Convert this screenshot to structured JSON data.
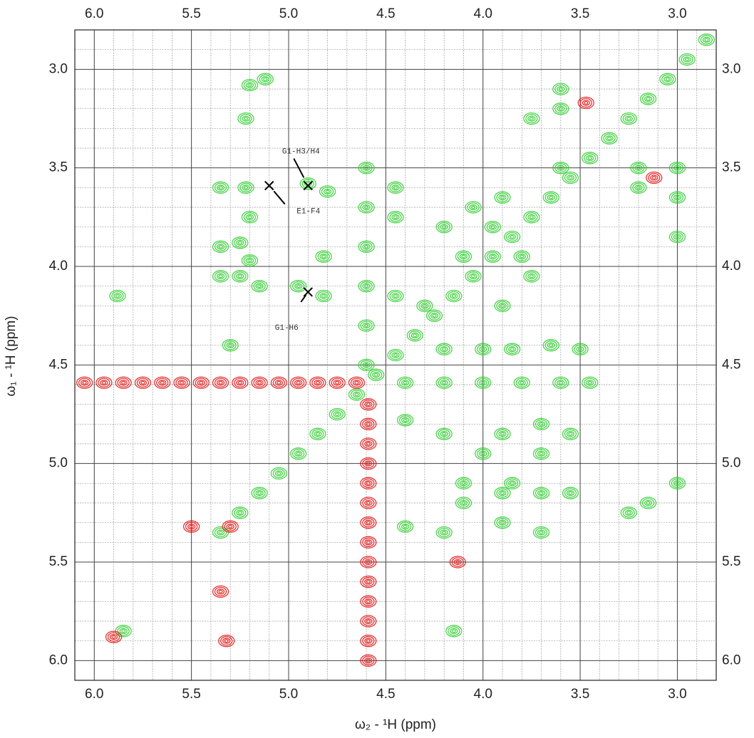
{
  "chart_data": {
    "type": "contour",
    "x_label": "ω₂ - ¹H  (ppm)",
    "y_label": "ω₁ - ¹H (ppm)",
    "xlim": [
      6.1,
      2.8
    ],
    "ylim": [
      2.8,
      6.1
    ],
    "xticks": [
      {
        "value": 6,
        "label": "6.0"
      },
      5.5,
      {
        "value": 5,
        "label": "5.0"
      },
      4.5,
      {
        "value": 4,
        "label": "4.0"
      },
      3.5,
      {
        "value": 3,
        "label": "3.0"
      }
    ],
    "yticks": [
      {
        "value": 3,
        "label": "3.0"
      },
      3.5,
      {
        "value": 4,
        "label": "4.0"
      },
      4.5,
      {
        "value": 5,
        "label": "5.0"
      },
      5.5,
      {
        "value": 6,
        "label": "6.0"
      }
    ],
    "minor_ticks": [
      2.9,
      3.0,
      3.1,
      3.2,
      3.3,
      3.4,
      3.5,
      3.6,
      3.7,
      3.8,
      3.9,
      4.0,
      4.1,
      4.2,
      4.3,
      4.4,
      4.5,
      4.6,
      4.7,
      4.8,
      4.9,
      5.0,
      5.1,
      5.2,
      5.3,
      5.4,
      5.5,
      5.6,
      5.7,
      5.8,
      5.9,
      6.0
    ],
    "grid": true,
    "series": [
      {
        "color": "#2ecc2e",
        "x": [
          2.85,
          2.95,
          3.05,
          3.15,
          3.25,
          3.35,
          3.45,
          3.55,
          3.65,
          3.75,
          3.85,
          3.95,
          4.05,
          4.15,
          4.25,
          4.35,
          4.45,
          4.55,
          4.65,
          4.75,
          4.85,
          4.95,
          5.05,
          5.15,
          5.25,
          5.35,
          5.2,
          5.12,
          5.22,
          5.35,
          5.22,
          5.2,
          4.9,
          4.8,
          5.35,
          5.25,
          5.2,
          5.35,
          5.25,
          5.15,
          4.95,
          4.82,
          4.82,
          5.3,
          4.45,
          4.45,
          4.45,
          4.2,
          4.0,
          3.85,
          3.65,
          3.5,
          3.9,
          3.6,
          3.6,
          3.6,
          3.2,
          3.2,
          3.0,
          3.0,
          3.0,
          3.75,
          4.4,
          4.2,
          3.9,
          3.7,
          3.55,
          4.0,
          3.7,
          4.1,
          3.9,
          3.85,
          3.7,
          3.55,
          3.15,
          3.0,
          3.25,
          4.1,
          4.4,
          4.2,
          3.9,
          3.7,
          5.85,
          4.15,
          5.88,
          4.2,
          4.1,
          3.9,
          3.8,
          4.3,
          3.95,
          4.05,
          3.75,
          4.6,
          4.6,
          4.6,
          4.6,
          4.6,
          4.6,
          4.4,
          4.2,
          4.0,
          3.8,
          3.6,
          3.45
        ],
        "values": [
          2.85,
          2.95,
          3.05,
          3.15,
          3.25,
          3.35,
          3.45,
          3.55,
          3.65,
          3.75,
          3.85,
          3.95,
          4.05,
          4.15,
          4.25,
          4.35,
          4.45,
          4.55,
          4.65,
          4.75,
          4.85,
          4.95,
          5.05,
          5.15,
          5.25,
          5.35,
          3.08,
          3.05,
          3.25,
          3.6,
          3.6,
          3.75,
          3.58,
          3.62,
          3.9,
          3.88,
          3.97,
          4.05,
          4.05,
          4.1,
          4.1,
          3.95,
          4.15,
          4.4,
          3.6,
          3.75,
          4.15,
          4.42,
          4.42,
          4.42,
          4.4,
          4.42,
          3.65,
          3.2,
          3.1,
          3.5,
          3.5,
          3.6,
          3.5,
          3.65,
          3.85,
          3.25,
          4.78,
          4.85,
          4.85,
          4.8,
          4.85,
          4.95,
          4.95,
          5.1,
          5.15,
          5.1,
          5.15,
          5.15,
          5.2,
          5.1,
          5.25,
          5.2,
          5.32,
          5.35,
          5.3,
          5.35,
          5.85,
          5.85,
          4.15,
          3.8,
          3.95,
          4.2,
          3.95,
          4.2,
          3.8,
          3.7,
          4.05,
          3.5,
          3.7,
          3.9,
          4.1,
          4.3,
          4.5,
          4.59,
          4.59,
          4.59,
          4.59,
          4.59,
          4.59
        ]
      },
      {
        "color": "#e01010",
        "x": [
          3.47,
          3.12,
          5.9,
          6.05,
          5.95,
          5.85,
          5.75,
          5.65,
          5.55,
          5.45,
          5.35,
          5.25,
          5.15,
          5.05,
          4.95,
          4.85,
          4.75,
          4.65,
          4.59,
          4.59,
          4.59,
          4.59,
          4.59,
          4.59,
          4.59,
          4.59,
          4.59,
          4.59,
          4.59,
          4.59,
          4.59,
          4.59,
          5.3,
          5.5,
          5.35,
          4.13,
          5.32
        ],
        "values": [
          3.17,
          3.55,
          5.88,
          4.59,
          4.59,
          4.59,
          4.59,
          4.59,
          4.59,
          4.59,
          4.59,
          4.59,
          4.59,
          4.59,
          4.59,
          4.59,
          4.59,
          4.59,
          4.7,
          4.8,
          4.9,
          5.0,
          5.1,
          5.2,
          5.3,
          5.4,
          5.5,
          5.6,
          5.7,
          5.8,
          5.9,
          6.0,
          5.32,
          5.32,
          5.65,
          5.5,
          5.9
        ]
      }
    ],
    "annotations": [
      {
        "text": "G1-H3/H4",
        "x": 4.9,
        "y": 3.59
      },
      {
        "text": "E1-F4",
        "x": 5.1,
        "y": 3.59
      },
      {
        "text": "G1-H6",
        "x": 4.9,
        "y": 4.13
      }
    ]
  }
}
